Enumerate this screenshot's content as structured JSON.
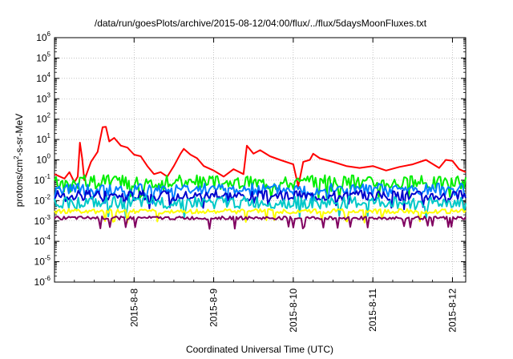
{
  "chart_data": {
    "type": "line",
    "title": "/data/run/goesPlots/archive/2015-08-12/04:00/flux/../flux/5daysMoonFluxes.txt",
    "xlabel": "Coordinated Universal Time (UTC)",
    "ylabel": {
      "base": "protons/cm",
      "sup": "2",
      "rest": "-s-sr-MeV"
    },
    "y_scale": "log",
    "ylim": [
      1e-06,
      1000000
    ],
    "xlim": [
      "2015-08-07 00:00",
      "2015-08-12 04:00"
    ],
    "grid": true,
    "y_ticks": [
      {
        "base": "10",
        "exp": "6",
        "value": 1000000
      },
      {
        "base": "10",
        "exp": "5",
        "value": 100000
      },
      {
        "base": "10",
        "exp": "4",
        "value": 10000
      },
      {
        "base": "10",
        "exp": "3",
        "value": 1000
      },
      {
        "base": "10",
        "exp": "2",
        "value": 100
      },
      {
        "base": "10",
        "exp": "1",
        "value": 10
      },
      {
        "base": "10",
        "exp": "0",
        "value": 1
      },
      {
        "base": "10",
        "exp": "-1",
        "value": 0.1
      },
      {
        "base": "10",
        "exp": "-2",
        "value": 0.01
      },
      {
        "base": "10",
        "exp": "-3",
        "value": 0.001
      },
      {
        "base": "10",
        "exp": "-4",
        "value": 0.0001
      },
      {
        "base": "10",
        "exp": "-5",
        "value": 1e-05
      },
      {
        "base": "10",
        "exp": "-6",
        "value": 1e-06
      }
    ],
    "x_ticks": [
      {
        "label": "2015-8-8",
        "time": "2015-08-08 00:00"
      },
      {
        "label": "2015-8-9",
        "time": "2015-08-09 00:00"
      },
      {
        "label": "2015-8-10",
        "time": "2015-08-10 00:00"
      },
      {
        "label": "2015-8-11",
        "time": "2015-08-11 00:00"
      },
      {
        "label": "2015-8-12",
        "time": "2015-08-12 00:00"
      }
    ],
    "series": [
      {
        "color": "#ff0000",
        "width": 2,
        "points": [
          [
            "2015-08-07 00:00",
            0.2
          ],
          [
            "2015-08-07 03:00",
            0.12
          ],
          [
            "2015-08-07 04:30",
            0.25
          ],
          [
            "2015-08-07 06:00",
            0.08
          ],
          [
            "2015-08-07 07:00",
            0.15
          ],
          [
            "2015-08-07 07:40",
            7
          ],
          [
            "2015-08-07 08:20",
            1.2
          ],
          [
            "2015-08-07 09:00",
            0.1
          ],
          [
            "2015-08-07 11:00",
            0.8
          ],
          [
            "2015-08-07 13:00",
            2.5
          ],
          [
            "2015-08-07 14:30",
            40
          ],
          [
            "2015-08-07 15:30",
            42
          ],
          [
            "2015-08-07 16:30",
            8
          ],
          [
            "2015-08-07 18:00",
            12
          ],
          [
            "2015-08-07 20:00",
            5
          ],
          [
            "2015-08-07 22:00",
            4
          ],
          [
            "2015-08-08 00:00",
            1.8
          ],
          [
            "2015-08-08 02:00",
            1.5
          ],
          [
            "2015-08-08 04:00",
            0.5
          ],
          [
            "2015-08-08 06:00",
            0.2
          ],
          [
            "2015-08-08 08:00",
            0.25
          ],
          [
            "2015-08-08 10:00",
            0.15
          ],
          [
            "2015-08-08 12:00",
            0.5
          ],
          [
            "2015-08-08 14:00",
            2
          ],
          [
            "2015-08-08 15:00",
            3.5
          ],
          [
            "2015-08-08 17:00",
            1.8
          ],
          [
            "2015-08-08 19:00",
            1.2
          ],
          [
            "2015-08-08 21:00",
            0.5
          ],
          [
            "2015-08-09 00:00",
            0.3
          ],
          [
            "2015-08-09 03:00",
            0.15
          ],
          [
            "2015-08-09 06:00",
            0.35
          ],
          [
            "2015-08-09 09:00",
            0.2
          ],
          [
            "2015-08-09 10:00",
            5
          ],
          [
            "2015-08-09 12:00",
            2
          ],
          [
            "2015-08-09 14:00",
            3
          ],
          [
            "2015-08-09 17:00",
            1.5
          ],
          [
            "2015-08-09 20:00",
            1
          ],
          [
            "2015-08-10 00:00",
            0.6
          ],
          [
            "2015-08-10 01:30",
            0.05
          ],
          [
            "2015-08-10 03:00",
            0.8
          ],
          [
            "2015-08-10 05:00",
            1
          ],
          [
            "2015-08-10 06:00",
            2
          ],
          [
            "2015-08-10 08:00",
            1.2
          ],
          [
            "2015-08-10 12:00",
            0.8
          ],
          [
            "2015-08-10 16:00",
            0.5
          ],
          [
            "2015-08-10 20:00",
            0.4
          ],
          [
            "2015-08-11 00:00",
            0.5
          ],
          [
            "2015-08-11 04:00",
            0.3
          ],
          [
            "2015-08-11 08:00",
            0.45
          ],
          [
            "2015-08-11 12:00",
            0.6
          ],
          [
            "2015-08-11 16:00",
            1
          ],
          [
            "2015-08-11 20:00",
            0.4
          ],
          [
            "2015-08-11 22:00",
            1
          ],
          [
            "2015-08-12 00:00",
            0.9
          ],
          [
            "2015-08-12 02:00",
            0.35
          ],
          [
            "2015-08-12 04:00",
            0.25
          ]
        ]
      },
      {
        "color": "#00ee00",
        "width": 2,
        "level": 0.08,
        "spread": 0.35
      },
      {
        "color": "#0080ff",
        "width": 2,
        "level": 0.035,
        "spread": 0.3
      },
      {
        "color": "#0000cc",
        "width": 2,
        "level": 0.018,
        "spread": 0.25
      },
      {
        "color": "#00c8c8",
        "width": 2,
        "level": 0.008,
        "spread": 0.3
      },
      {
        "color": "#ffff00",
        "width": 2,
        "level": 0.003,
        "spread": 0.12
      },
      {
        "color": "#800060",
        "width": 2,
        "level": 0.0014,
        "spread": 0.08
      }
    ]
  }
}
